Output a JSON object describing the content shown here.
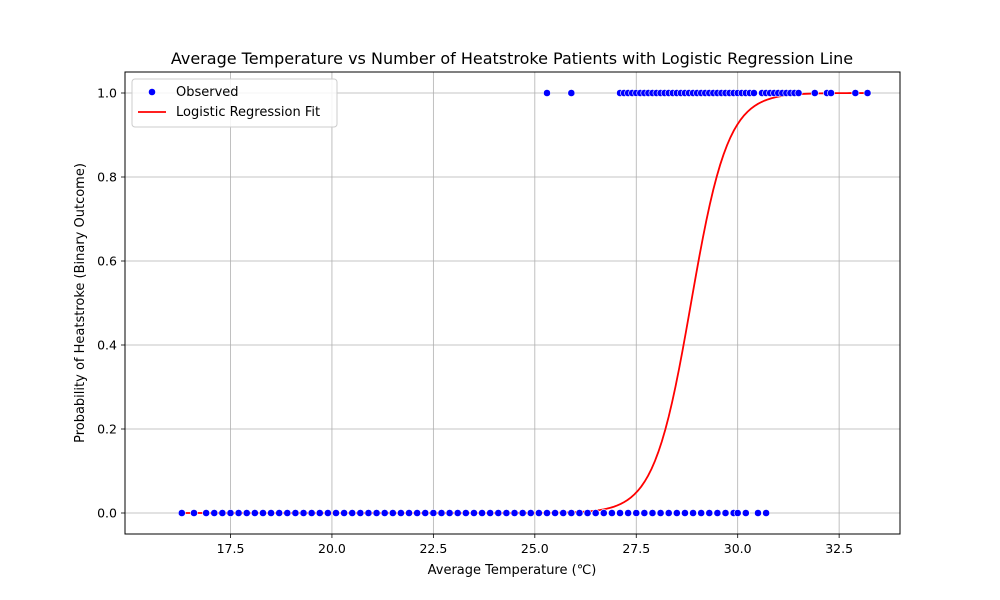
{
  "chart_data": {
    "type": "scatter",
    "title": "Average Temperature vs Number of Heatstroke Patients with Logistic Regression Line",
    "xlabel": "Average Temperature (℃)",
    "ylabel": "Probability of Heatstroke (Binary Outcome)",
    "xlim": [
      14.9,
      34.0
    ],
    "ylim": [
      -0.05,
      1.05
    ],
    "xticks": [
      17.5,
      20.0,
      22.5,
      25.0,
      27.5,
      30.0,
      32.5
    ],
    "xtick_labels": [
      "17.5",
      "20.0",
      "22.5",
      "25.0",
      "27.5",
      "30.0",
      "32.5"
    ],
    "yticks": [
      0.0,
      0.2,
      0.4,
      0.6,
      0.8,
      1.0
    ],
    "ytick_labels": [
      "0.0",
      "0.2",
      "0.4",
      "0.6",
      "0.8",
      "1.0"
    ],
    "grid": true,
    "legend_position": "top-left",
    "colors": {
      "observed": "#0000ff",
      "fit": "#ff0000",
      "grid": "#b0b0b0"
    },
    "series": [
      {
        "name": "Observed",
        "kind": "scatter",
        "points_y0": [
          16.3,
          16.6,
          16.9,
          17.1,
          17.3,
          17.5,
          17.7,
          17.9,
          18.1,
          18.3,
          18.5,
          18.7,
          18.9,
          19.1,
          19.3,
          19.5,
          19.7,
          19.9,
          20.1,
          20.3,
          20.5,
          20.7,
          20.9,
          21.1,
          21.3,
          21.5,
          21.7,
          21.9,
          22.1,
          22.3,
          22.5,
          22.7,
          22.9,
          23.1,
          23.3,
          23.5,
          23.7,
          23.9,
          24.1,
          24.3,
          24.5,
          24.7,
          24.9,
          25.1,
          25.3,
          25.5,
          25.7,
          25.9,
          26.1,
          26.3,
          26.5,
          26.7,
          26.9,
          27.1,
          27.3,
          27.5,
          27.7,
          27.9,
          28.1,
          28.3,
          28.5,
          28.7,
          28.9,
          29.1,
          29.3,
          29.5,
          29.7,
          29.9,
          30.0,
          30.2,
          30.5,
          30.7
        ],
        "points_y1": [
          25.3,
          25.9,
          27.1,
          27.2,
          27.3,
          27.4,
          27.5,
          27.6,
          27.7,
          27.8,
          27.9,
          28.0,
          28.1,
          28.2,
          28.3,
          28.4,
          28.5,
          28.6,
          28.7,
          28.8,
          28.9,
          29.0,
          29.1,
          29.2,
          29.3,
          29.4,
          29.5,
          29.6,
          29.7,
          29.8,
          29.9,
          30.0,
          30.1,
          30.2,
          30.3,
          30.4,
          30.6,
          30.7,
          30.8,
          30.9,
          31.0,
          31.1,
          31.2,
          31.3,
          31.4,
          31.5,
          31.9,
          32.2,
          32.3,
          32.9,
          33.2
        ]
      },
      {
        "name": "Logistic Regression Fit",
        "kind": "line",
        "x_range": [
          16.3,
          33.2
        ],
        "midpoint": 28.85,
        "slope": 2.2
      }
    ]
  }
}
